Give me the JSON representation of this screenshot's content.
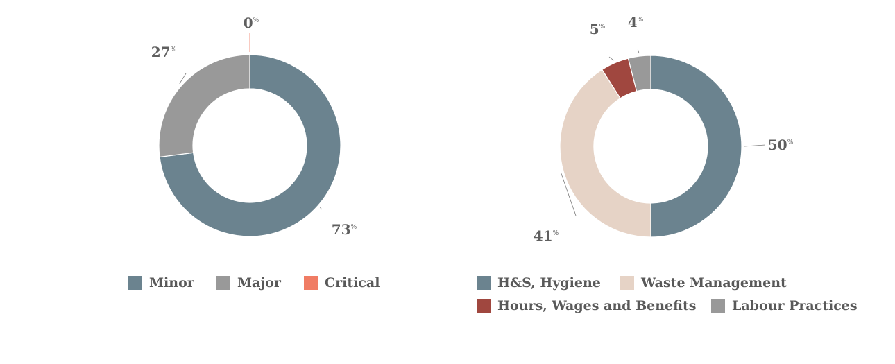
{
  "colors": {
    "minor": "#6b838f",
    "major": "#999999",
    "critical": "#f07c64",
    "hs_hygiene": "#6b838f",
    "waste_management": "#e6d3c6",
    "hours_wages": "#a0473f",
    "labour_practices": "#999999",
    "label_text": "#5f5f5f",
    "leader_line": "#7a7a7a"
  },
  "percent_suffix": "%",
  "chart_data": [
    {
      "type": "pie",
      "donut": true,
      "title": "",
      "categories": [
        "Minor",
        "Major",
        "Critical"
      ],
      "values": [
        73,
        27,
        0
      ],
      "labels": [
        "73",
        "27",
        "0"
      ],
      "legend": "bottom"
    },
    {
      "type": "pie",
      "donut": true,
      "title": "",
      "categories": [
        "H&S, Hygiene",
        "Waste Management",
        "Hours, Wages and Benefits",
        "Labour Practices"
      ],
      "values": [
        50,
        41,
        5,
        4
      ],
      "labels": [
        "50",
        "41",
        "5",
        "4"
      ],
      "legend": "bottom"
    }
  ]
}
